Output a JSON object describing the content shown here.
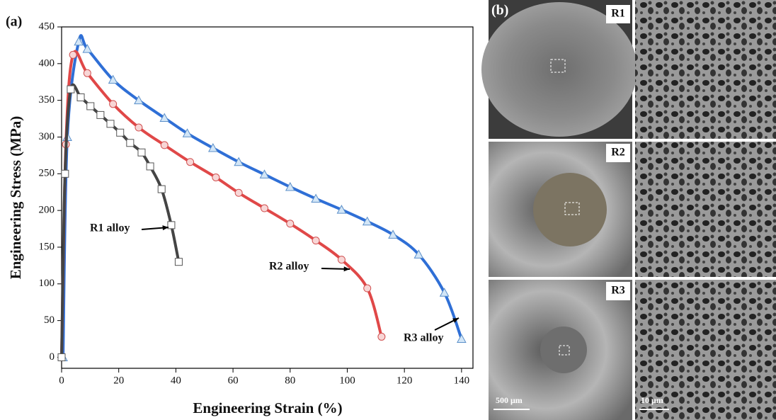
{
  "chart_data": {
    "type": "line",
    "panel_label": "(a)",
    "x_label": "Engineering Strain (%)",
    "y_label": "Engineering Stress (MPa)",
    "xlim": [
      0,
      144
    ],
    "ylim": [
      -15,
      450
    ],
    "xticks": [
      0,
      20,
      40,
      60,
      80,
      100,
      120,
      140
    ],
    "yticks": [
      0,
      50,
      100,
      150,
      200,
      250,
      300,
      350,
      400,
      450
    ],
    "annotations": [
      "R1 alloy",
      "R2 alloy",
      "R3 alloy"
    ],
    "series": [
      {
        "name": "R3",
        "color": "#2f6fd6",
        "marker": "triangle",
        "marker_fill": "#d3e6f7",
        "marker_edge": "#5b8fc9",
        "x": [
          0.5,
          2,
          6,
          9,
          18,
          27,
          36,
          44,
          53,
          62,
          71,
          80,
          89,
          98,
          107,
          116,
          125,
          134,
          140
        ],
        "values": [
          0,
          300,
          430,
          420,
          378,
          350,
          326,
          305,
          285,
          266,
          249,
          232,
          216,
          201,
          185,
          167,
          140,
          88,
          25
        ]
      },
      {
        "name": "R2",
        "color": "#e04848",
        "marker": "circle",
        "marker_fill": "#f8d6d6",
        "marker_edge": "#d05050",
        "x": [
          0,
          1.5,
          4,
          9,
          18,
          27,
          36,
          45,
          54,
          62,
          71,
          80,
          89,
          98,
          107,
          112
        ],
        "values": [
          0,
          290,
          412,
          387,
          345,
          313,
          289,
          266,
          245,
          224,
          203,
          182,
          159,
          133,
          94,
          28
        ]
      },
      {
        "name": "R1",
        "color": "#444444",
        "marker": "square",
        "marker_fill": "#ffffff",
        "marker_edge": "#555555",
        "x": [
          0,
          1.2,
          3.2,
          6.7,
          10.1,
          13.6,
          17.1,
          20.5,
          24,
          28,
          31,
          35,
          38.4,
          41
        ],
        "values": [
          0,
          250,
          365,
          354,
          342,
          330,
          318,
          306,
          292,
          279,
          260,
          229,
          180,
          130
        ]
      }
    ]
  },
  "images": {
    "panel_label": "(b)",
    "rows": [
      "R1",
      "R2",
      "R3"
    ],
    "scale_bars": [
      "500 μm",
      "10 μm"
    ]
  }
}
